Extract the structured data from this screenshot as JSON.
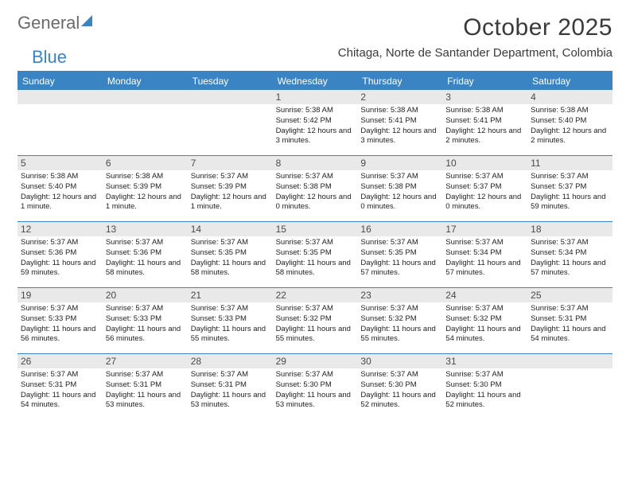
{
  "brand": {
    "part1": "General",
    "part2": "Blue"
  },
  "title": "October 2025",
  "location": "Chitaga, Norte de Santander Department, Colombia",
  "colors": {
    "accent": "#3a84c4",
    "daynum_bg": "#e9e9e9",
    "text": "#222222",
    "title_text": "#3a3a3a"
  },
  "day_labels": [
    "Sunday",
    "Monday",
    "Tuesday",
    "Wednesday",
    "Thursday",
    "Friday",
    "Saturday"
  ],
  "weeks": [
    [
      {
        "n": "",
        "sr": "",
        "ss": "",
        "dl": ""
      },
      {
        "n": "",
        "sr": "",
        "ss": "",
        "dl": ""
      },
      {
        "n": "",
        "sr": "",
        "ss": "",
        "dl": ""
      },
      {
        "n": "1",
        "sr": "Sunrise: 5:38 AM",
        "ss": "Sunset: 5:42 PM",
        "dl": "Daylight: 12 hours and 3 minutes."
      },
      {
        "n": "2",
        "sr": "Sunrise: 5:38 AM",
        "ss": "Sunset: 5:41 PM",
        "dl": "Daylight: 12 hours and 3 minutes."
      },
      {
        "n": "3",
        "sr": "Sunrise: 5:38 AM",
        "ss": "Sunset: 5:41 PM",
        "dl": "Daylight: 12 hours and 2 minutes."
      },
      {
        "n": "4",
        "sr": "Sunrise: 5:38 AM",
        "ss": "Sunset: 5:40 PM",
        "dl": "Daylight: 12 hours and 2 minutes."
      }
    ],
    [
      {
        "n": "5",
        "sr": "Sunrise: 5:38 AM",
        "ss": "Sunset: 5:40 PM",
        "dl": "Daylight: 12 hours and 1 minute."
      },
      {
        "n": "6",
        "sr": "Sunrise: 5:38 AM",
        "ss": "Sunset: 5:39 PM",
        "dl": "Daylight: 12 hours and 1 minute."
      },
      {
        "n": "7",
        "sr": "Sunrise: 5:37 AM",
        "ss": "Sunset: 5:39 PM",
        "dl": "Daylight: 12 hours and 1 minute."
      },
      {
        "n": "8",
        "sr": "Sunrise: 5:37 AM",
        "ss": "Sunset: 5:38 PM",
        "dl": "Daylight: 12 hours and 0 minutes."
      },
      {
        "n": "9",
        "sr": "Sunrise: 5:37 AM",
        "ss": "Sunset: 5:38 PM",
        "dl": "Daylight: 12 hours and 0 minutes."
      },
      {
        "n": "10",
        "sr": "Sunrise: 5:37 AM",
        "ss": "Sunset: 5:37 PM",
        "dl": "Daylight: 12 hours and 0 minutes."
      },
      {
        "n": "11",
        "sr": "Sunrise: 5:37 AM",
        "ss": "Sunset: 5:37 PM",
        "dl": "Daylight: 11 hours and 59 minutes."
      }
    ],
    [
      {
        "n": "12",
        "sr": "Sunrise: 5:37 AM",
        "ss": "Sunset: 5:36 PM",
        "dl": "Daylight: 11 hours and 59 minutes."
      },
      {
        "n": "13",
        "sr": "Sunrise: 5:37 AM",
        "ss": "Sunset: 5:36 PM",
        "dl": "Daylight: 11 hours and 58 minutes."
      },
      {
        "n": "14",
        "sr": "Sunrise: 5:37 AM",
        "ss": "Sunset: 5:35 PM",
        "dl": "Daylight: 11 hours and 58 minutes."
      },
      {
        "n": "15",
        "sr": "Sunrise: 5:37 AM",
        "ss": "Sunset: 5:35 PM",
        "dl": "Daylight: 11 hours and 58 minutes."
      },
      {
        "n": "16",
        "sr": "Sunrise: 5:37 AM",
        "ss": "Sunset: 5:35 PM",
        "dl": "Daylight: 11 hours and 57 minutes."
      },
      {
        "n": "17",
        "sr": "Sunrise: 5:37 AM",
        "ss": "Sunset: 5:34 PM",
        "dl": "Daylight: 11 hours and 57 minutes."
      },
      {
        "n": "18",
        "sr": "Sunrise: 5:37 AM",
        "ss": "Sunset: 5:34 PM",
        "dl": "Daylight: 11 hours and 57 minutes."
      }
    ],
    [
      {
        "n": "19",
        "sr": "Sunrise: 5:37 AM",
        "ss": "Sunset: 5:33 PM",
        "dl": "Daylight: 11 hours and 56 minutes."
      },
      {
        "n": "20",
        "sr": "Sunrise: 5:37 AM",
        "ss": "Sunset: 5:33 PM",
        "dl": "Daylight: 11 hours and 56 minutes."
      },
      {
        "n": "21",
        "sr": "Sunrise: 5:37 AM",
        "ss": "Sunset: 5:33 PM",
        "dl": "Daylight: 11 hours and 55 minutes."
      },
      {
        "n": "22",
        "sr": "Sunrise: 5:37 AM",
        "ss": "Sunset: 5:32 PM",
        "dl": "Daylight: 11 hours and 55 minutes."
      },
      {
        "n": "23",
        "sr": "Sunrise: 5:37 AM",
        "ss": "Sunset: 5:32 PM",
        "dl": "Daylight: 11 hours and 55 minutes."
      },
      {
        "n": "24",
        "sr": "Sunrise: 5:37 AM",
        "ss": "Sunset: 5:32 PM",
        "dl": "Daylight: 11 hours and 54 minutes."
      },
      {
        "n": "25",
        "sr": "Sunrise: 5:37 AM",
        "ss": "Sunset: 5:31 PM",
        "dl": "Daylight: 11 hours and 54 minutes."
      }
    ],
    [
      {
        "n": "26",
        "sr": "Sunrise: 5:37 AM",
        "ss": "Sunset: 5:31 PM",
        "dl": "Daylight: 11 hours and 54 minutes."
      },
      {
        "n": "27",
        "sr": "Sunrise: 5:37 AM",
        "ss": "Sunset: 5:31 PM",
        "dl": "Daylight: 11 hours and 53 minutes."
      },
      {
        "n": "28",
        "sr": "Sunrise: 5:37 AM",
        "ss": "Sunset: 5:31 PM",
        "dl": "Daylight: 11 hours and 53 minutes."
      },
      {
        "n": "29",
        "sr": "Sunrise: 5:37 AM",
        "ss": "Sunset: 5:30 PM",
        "dl": "Daylight: 11 hours and 53 minutes."
      },
      {
        "n": "30",
        "sr": "Sunrise: 5:37 AM",
        "ss": "Sunset: 5:30 PM",
        "dl": "Daylight: 11 hours and 52 minutes."
      },
      {
        "n": "31",
        "sr": "Sunrise: 5:37 AM",
        "ss": "Sunset: 5:30 PM",
        "dl": "Daylight: 11 hours and 52 minutes."
      },
      {
        "n": "",
        "sr": "",
        "ss": "",
        "dl": ""
      }
    ]
  ]
}
